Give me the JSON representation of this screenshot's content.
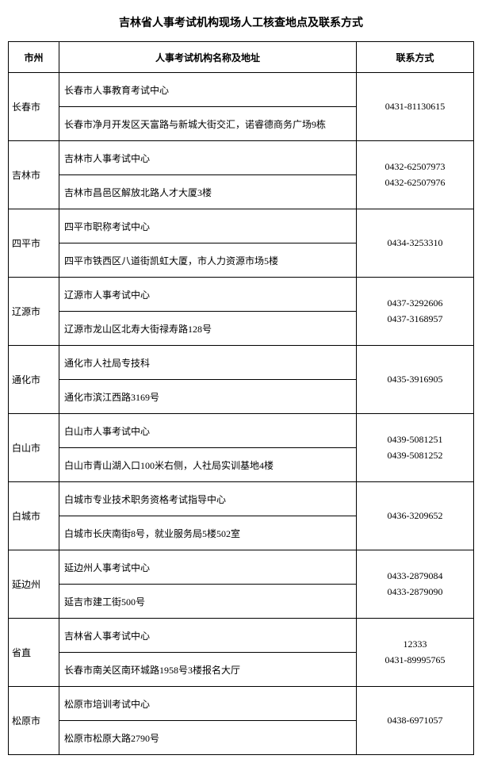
{
  "page_title": "吉林省人事考试机构现场人工核查地点及联系方式",
  "headers": {
    "city": "市州",
    "info": "人事考试机构名称及地址",
    "contact": "联系方式"
  },
  "rows": [
    {
      "city": "长春市",
      "name": "长春市人事教育考试中心",
      "addr": "长春市净月开发区天富路与新城大街交汇，诺睿德商务广场9栋",
      "contacts": [
        "0431-81130615"
      ]
    },
    {
      "city": "吉林市",
      "name": "吉林市人事考试中心",
      "addr": "吉林市昌邑区解放北路人才大厦3楼",
      "contacts": [
        "0432-62507973",
        "0432-62507976"
      ]
    },
    {
      "city": "四平市",
      "name": "四平市职称考试中心",
      "addr": "四平市铁西区八道街凯虹大厦，市人力资源市场5楼",
      "contacts": [
        "0434-3253310"
      ]
    },
    {
      "city": "辽源市",
      "name": "辽源市人事考试中心",
      "addr": "辽源市龙山区北寿大街禄寿路128号",
      "contacts": [
        "0437-3292606",
        "0437-3168957"
      ]
    },
    {
      "city": "通化市",
      "name": "通化市人社局专技科",
      "addr": "通化市滨江西路3169号",
      "contacts": [
        "0435-3916905"
      ]
    },
    {
      "city": "白山市",
      "name": "白山市人事考试中心",
      "addr": "白山市青山湖入口100米右侧，人社局实训基地4楼",
      "contacts": [
        "0439-5081251",
        "0439-5081252"
      ]
    },
    {
      "city": "白城市",
      "name": "白城市专业技术职务资格考试指导中心",
      "addr": "白城市长庆南街8号，就业服务局5楼502室",
      "contacts": [
        "0436-3209652"
      ]
    },
    {
      "city": "延边州",
      "name": "延边州人事考试中心",
      "addr": "延吉市建工街500号",
      "contacts": [
        "0433-2879084",
        "0433-2879090"
      ]
    },
    {
      "city": "省直",
      "name": "吉林省人事考试中心",
      "addr": "长春市南关区南环城路1958号3楼报名大厅",
      "contacts": [
        "12333",
        "0431-89995765"
      ]
    },
    {
      "city": "松原市",
      "name": "松原市培训考试中心",
      "addr": "松原市松原大路2790号",
      "contacts": [
        "0438-6971057"
      ]
    }
  ]
}
